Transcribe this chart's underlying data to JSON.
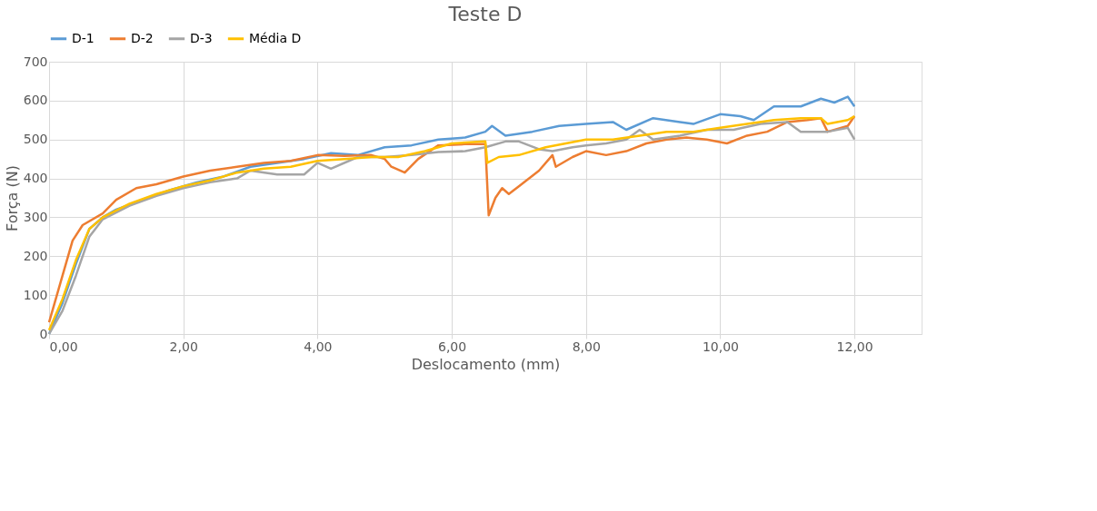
{
  "chart_data": {
    "type": "line",
    "title": "Teste D",
    "xlabel": "Deslocamento (mm)",
    "ylabel": "Força (N)",
    "xlim": [
      0,
      13
    ],
    "ylim": [
      0,
      700
    ],
    "xticks": [
      {
        "value": 0,
        "label": "0,00"
      },
      {
        "value": 2,
        "label": "2,00"
      },
      {
        "value": 4,
        "label": "4,00"
      },
      {
        "value": 6,
        "label": "6,00"
      },
      {
        "value": 8,
        "label": "8,00"
      },
      {
        "value": 10,
        "label": "10,00"
      },
      {
        "value": 12,
        "label": "12,00"
      }
    ],
    "yticks": [
      0,
      100,
      200,
      300,
      400,
      500,
      600,
      700
    ],
    "grid": true,
    "legend": "top",
    "marker": "none",
    "line_style": "solid",
    "series": [
      {
        "name": "D-1",
        "color": "#5b9bd5",
        "x": [
          0,
          0.2,
          0.4,
          0.6,
          0.8,
          1.0,
          1.4,
          1.8,
          2.2,
          2.6,
          3.0,
          3.4,
          3.8,
          4.2,
          4.6,
          5.0,
          5.4,
          5.8,
          6.2,
          6.5,
          6.6,
          6.8,
          7.2,
          7.6,
          8.0,
          8.4,
          8.6,
          9.0,
          9.4,
          9.6,
          10.0,
          10.3,
          10.5,
          10.8,
          11.2,
          11.5,
          11.7,
          11.9,
          12.0
        ],
        "values": [
          0,
          80,
          180,
          270,
          300,
          320,
          345,
          370,
          390,
          405,
          430,
          440,
          450,
          465,
          460,
          480,
          485,
          500,
          505,
          520,
          535,
          510,
          520,
          535,
          540,
          545,
          525,
          555,
          545,
          540,
          565,
          560,
          550,
          585,
          585,
          605,
          595,
          610,
          585
        ]
      },
      {
        "name": "D-2",
        "color": "#ed7d31",
        "x": [
          0,
          0.2,
          0.35,
          0.5,
          0.8,
          1.0,
          1.3,
          1.6,
          2.0,
          2.4,
          2.8,
          3.2,
          3.6,
          4.0,
          4.4,
          4.8,
          5.0,
          5.1,
          5.3,
          5.5,
          5.8,
          6.2,
          6.5,
          6.55,
          6.65,
          6.75,
          6.85,
          7.0,
          7.3,
          7.5,
          7.55,
          7.8,
          8.0,
          8.3,
          8.6,
          8.9,
          9.2,
          9.5,
          9.8,
          10.1,
          10.4,
          10.7,
          11.0,
          11.3,
          11.5,
          11.6,
          11.9,
          12.0
        ],
        "values": [
          30,
          150,
          240,
          280,
          310,
          345,
          375,
          385,
          405,
          420,
          430,
          440,
          445,
          460,
          458,
          460,
          450,
          430,
          415,
          450,
          485,
          488,
          488,
          305,
          350,
          375,
          360,
          380,
          420,
          460,
          430,
          455,
          470,
          460,
          470,
          490,
          500,
          505,
          500,
          490,
          510,
          520,
          545,
          550,
          555,
          520,
          535,
          560
        ]
      },
      {
        "name": "D-3",
        "color": "#a5a5a5",
        "x": [
          0,
          0.2,
          0.4,
          0.6,
          0.8,
          1.2,
          1.6,
          2.0,
          2.4,
          2.8,
          3.0,
          3.4,
          3.8,
          4.0,
          4.2,
          4.6,
          5.0,
          5.4,
          5.8,
          6.2,
          6.5,
          6.8,
          7.0,
          7.3,
          7.5,
          7.8,
          8.0,
          8.3,
          8.6,
          8.8,
          9.0,
          9.4,
          9.8,
          10.2,
          10.6,
          11.0,
          11.2,
          11.6,
          11.9,
          12.0
        ],
        "values": [
          0,
          60,
          150,
          250,
          295,
          330,
          355,
          375,
          390,
          400,
          420,
          410,
          410,
          440,
          425,
          455,
          455,
          460,
          468,
          470,
          480,
          495,
          495,
          475,
          470,
          480,
          485,
          490,
          500,
          525,
          500,
          510,
          525,
          525,
          540,
          545,
          520,
          520,
          530,
          500
        ]
      },
      {
        "name": "Média D",
        "color": "#ffc000",
        "x": [
          0,
          0.2,
          0.4,
          0.6,
          0.8,
          1.2,
          1.6,
          2.0,
          2.4,
          2.8,
          3.2,
          3.6,
          4.0,
          4.4,
          4.8,
          5.2,
          5.6,
          6.0,
          6.5,
          6.53,
          6.7,
          7.0,
          7.4,
          7.7,
          8.0,
          8.4,
          8.8,
          9.2,
          9.6,
          10.0,
          10.4,
          10.8,
          11.2,
          11.5,
          11.6,
          11.9,
          12.0
        ],
        "values": [
          10,
          90,
          190,
          270,
          300,
          335,
          360,
          380,
          395,
          415,
          425,
          430,
          445,
          450,
          455,
          455,
          470,
          490,
          495,
          440,
          455,
          460,
          480,
          490,
          500,
          500,
          510,
          520,
          520,
          530,
          540,
          550,
          555,
          555,
          540,
          550,
          560
        ]
      }
    ]
  }
}
